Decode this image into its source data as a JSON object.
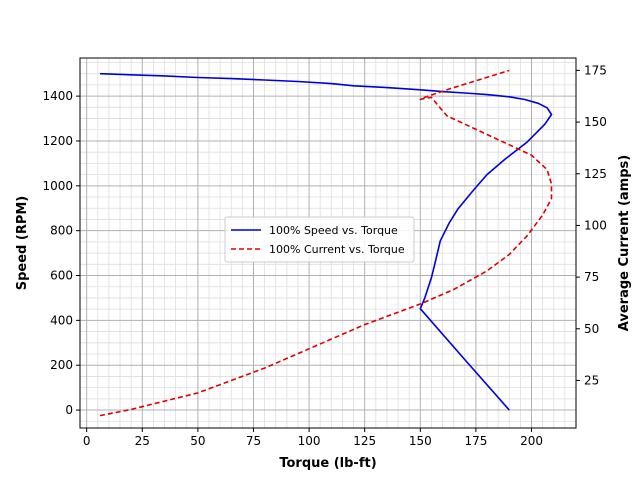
{
  "chart_data": {
    "type": "line",
    "title": "",
    "xlabel": "Torque (lb-ft)",
    "ylabel": "Speed (RPM)",
    "y2label": "Average Current (amps)",
    "xlim": [
      -3,
      220
    ],
    "ylim": [
      -80,
      1570
    ],
    "y2lim": [
      2,
      181
    ],
    "xticks": [
      0,
      25,
      50,
      75,
      100,
      125,
      150,
      175,
      200
    ],
    "yticks": [
      0,
      200,
      400,
      600,
      800,
      1000,
      1200,
      1400
    ],
    "y2ticks": [
      25,
      50,
      75,
      100,
      125,
      150,
      175
    ],
    "grid": true,
    "minor_grid": true,
    "legend_position": "center",
    "series": [
      {
        "name": "100% Speed vs. Torque",
        "axis": "left",
        "color": "#0000dd",
        "style": "solid",
        "points": [
          [
            6,
            1500
          ],
          [
            20,
            1495
          ],
          [
            35,
            1490
          ],
          [
            50,
            1483
          ],
          [
            65,
            1478
          ],
          [
            80,
            1472
          ],
          [
            95,
            1465
          ],
          [
            110,
            1456
          ],
          [
            120,
            1446
          ],
          [
            130,
            1441
          ],
          [
            140,
            1435
          ],
          [
            150,
            1428
          ],
          [
            160,
            1420
          ],
          [
            170,
            1414
          ],
          [
            180,
            1407
          ],
          [
            190,
            1397
          ],
          [
            197,
            1385
          ],
          [
            203,
            1368
          ],
          [
            207,
            1348
          ],
          [
            209,
            1318
          ],
          [
            206,
            1275
          ],
          [
            198,
            1195
          ],
          [
            188,
            1118
          ],
          [
            180,
            1050
          ],
          [
            174,
            982
          ],
          [
            167,
            898
          ],
          [
            163,
            834
          ],
          [
            159,
            755
          ],
          [
            157,
            672
          ],
          [
            155,
            590
          ],
          [
            152,
            500
          ],
          [
            150,
            452
          ],
          [
            170,
            225
          ],
          [
            190,
            0
          ]
        ]
      },
      {
        "name": "100% Current vs. Torque",
        "axis": "right",
        "color": "#dd0000",
        "style": "dashed",
        "points": [
          [
            6,
            8
          ],
          [
            20,
            11
          ],
          [
            35,
            15
          ],
          [
            50,
            19
          ],
          [
            65,
            25
          ],
          [
            80,
            31
          ],
          [
            95,
            38
          ],
          [
            110,
            45
          ],
          [
            125,
            52
          ],
          [
            140,
            58
          ],
          [
            150,
            62
          ],
          [
            165,
            69
          ],
          [
            180,
            78
          ],
          [
            190,
            86
          ],
          [
            198,
            95
          ],
          [
            205,
            105
          ],
          [
            209,
            113
          ],
          [
            209,
            120
          ],
          [
            207,
            127
          ],
          [
            200,
            134
          ],
          [
            190,
            139
          ],
          [
            180,
            144
          ],
          [
            170,
            149
          ],
          [
            162,
            153
          ],
          [
            158,
            158
          ],
          [
            155,
            162
          ],
          [
            150,
            161
          ],
          [
            152,
            162
          ],
          [
            163,
            166
          ],
          [
            178,
            171
          ],
          [
            190,
            175
          ]
        ]
      }
    ]
  }
}
